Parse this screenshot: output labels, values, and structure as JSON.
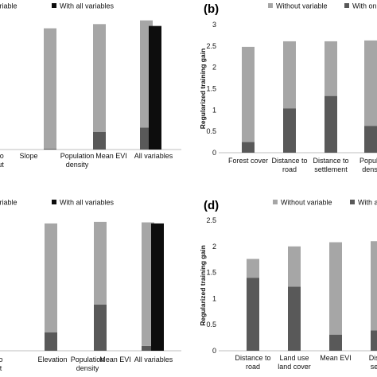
{
  "colors": {
    "without": "#a6a6a6",
    "with": "#595959",
    "all": "#0d0d0d",
    "axis": "#bfbfbf"
  },
  "chart_data": [
    {
      "panel": "(a)",
      "panel_label_visible": false,
      "type": "bar",
      "stacked": true,
      "legend_position": "top",
      "legend": [
        "variable",
        "With all variables"
      ],
      "categories": [
        [
          "to",
          "ut"
        ],
        [
          "Slope"
        ],
        [
          "Population",
          "density"
        ],
        [
          "Mean EVI"
        ],
        [
          "All variables"
        ]
      ],
      "series": [
        {
          "name": "variable",
          "values": [
            null,
            2.58,
            2.31,
            2.3,
            0
          ]
        },
        {
          "name": "With all variables",
          "values": [
            null,
            0.02,
            0.38,
            0.47,
            2.65
          ]
        }
      ],
      "totals": [
        null,
        2.6,
        2.69,
        2.77,
        2.65
      ],
      "ylim": [
        0,
        2.9
      ],
      "ylabel": "",
      "show_ticks": false
    },
    {
      "panel": "(b)",
      "panel_label_visible": true,
      "type": "bar",
      "stacked": true,
      "legend_position": "top",
      "legend": [
        "Without variable",
        "With on"
      ],
      "categories": [
        [
          "Forest cover"
        ],
        [
          "Distance to",
          "road"
        ],
        [
          "Distance to",
          "settlement"
        ],
        [
          "Popula",
          "densi"
        ]
      ],
      "series": [
        {
          "name": "Without variable",
          "values": [
            2.23,
            1.57,
            1.28,
            2.0
          ]
        },
        {
          "name": "With on",
          "values": [
            0.25,
            1.04,
            1.33,
            0.63
          ]
        }
      ],
      "totals": [
        2.48,
        2.61,
        2.61,
        2.63
      ],
      "ylim": [
        0,
        3
      ],
      "yticks": [
        "0",
        "0.5",
        "1",
        "1.5",
        "2",
        "2.5",
        "3"
      ],
      "ylabel": "Regularized training gain",
      "show_ticks": true
    },
    {
      "panel": "(c)",
      "panel_label_visible": false,
      "type": "bar",
      "stacked": true,
      "legend_position": "top",
      "legend": [
        "variable",
        "With all variables"
      ],
      "categories": [
        [
          "o",
          "t"
        ],
        [
          "Elevation"
        ],
        [
          "Population",
          "density"
        ],
        [
          "Mean EVI"
        ],
        [
          "All variables"
        ]
      ],
      "series": [
        {
          "name": "variable",
          "values": [
            null,
            2.0,
            1.52,
            2.27,
            0
          ]
        },
        {
          "name": "With all variables",
          "values": [
            null,
            0.34,
            0.85,
            0.09,
            2.34
          ]
        }
      ],
      "totals": [
        null,
        2.34,
        2.37,
        2.36,
        2.34
      ],
      "ylim": [
        0,
        2.5
      ],
      "ylabel": "",
      "show_ticks": false
    },
    {
      "panel": "(d)",
      "panel_label_visible": true,
      "type": "bar",
      "stacked": true,
      "legend_position": "top",
      "legend": [
        "Without variable",
        "With a"
      ],
      "categories": [
        [
          "Distance to",
          "road"
        ],
        [
          "Land use",
          "land cover"
        ],
        [
          "Mean EVI"
        ],
        [
          "Dista",
          "settl"
        ]
      ],
      "series": [
        {
          "name": "Without variable",
          "values": [
            0.36,
            0.77,
            1.77,
            1.71
          ]
        },
        {
          "name": "With a",
          "values": [
            1.4,
            1.23,
            0.31,
            0.39
          ]
        }
      ],
      "totals": [
        1.76,
        2.0,
        2.08,
        2.1
      ],
      "ylim": [
        0,
        2.5
      ],
      "yticks": [
        "0",
        "0.5",
        "1",
        "1.5",
        "2",
        "2.5"
      ],
      "ylabel": "Regularized training gain",
      "show_ticks": true
    }
  ]
}
